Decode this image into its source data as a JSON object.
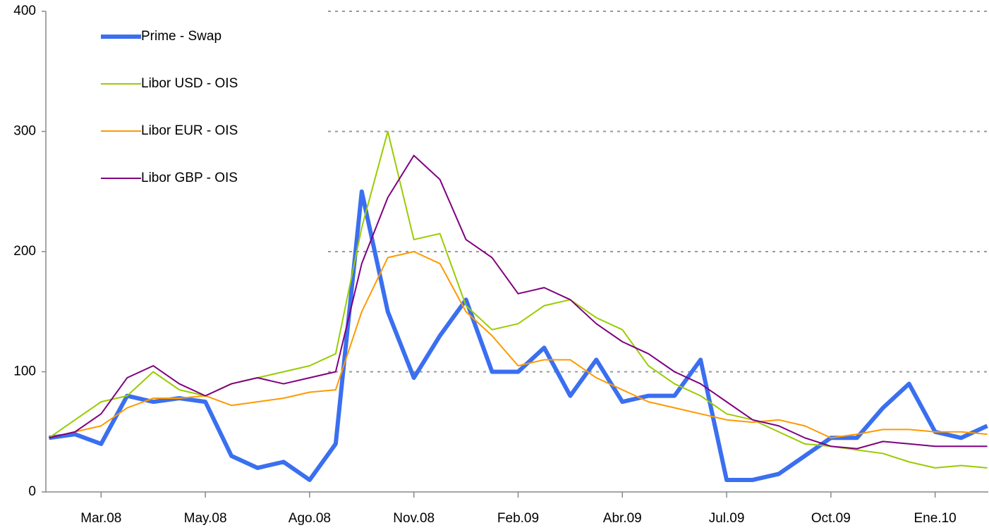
{
  "chart_data": {
    "type": "line",
    "x": [
      0.5,
      0.75,
      1,
      1.25,
      1.5,
      1.75,
      2,
      2.25,
      2.5,
      2.75,
      3,
      3.25,
      3.5,
      3.75,
      4,
      4.25,
      4.5,
      4.75,
      5,
      5.25,
      5.5,
      5.75,
      6,
      6.25,
      6.5,
      6.75,
      7,
      7.25,
      7.5,
      7.75,
      8,
      8.25,
      8.5,
      8.75,
      9,
      9.25,
      9.5
    ],
    "series": [
      {
        "name": "Prime - Swap",
        "color": "#3a6ff0",
        "width": 6,
        "values": [
          45,
          48,
          40,
          80,
          75,
          78,
          75,
          30,
          20,
          25,
          10,
          40,
          250,
          150,
          95,
          130,
          160,
          100,
          100,
          120,
          80,
          110,
          75,
          80,
          80,
          110,
          10,
          10,
          15,
          30,
          45,
          45,
          70,
          90,
          50,
          45,
          55
        ]
      },
      {
        "name": "Libor USD - OIS",
        "color": "#99cc00",
        "width": 2,
        "values": [
          45,
          60,
          75,
          80,
          100,
          85,
          80,
          90,
          95,
          100,
          105,
          115,
          220,
          300,
          210,
          215,
          155,
          135,
          140,
          155,
          160,
          145,
          135,
          105,
          90,
          80,
          65,
          60,
          50,
          40,
          38,
          35,
          32,
          25,
          20,
          22,
          20
        ]
      },
      {
        "name": "Libor EUR - OIS",
        "color": "#ff9900",
        "width": 2,
        "values": [
          45,
          50,
          55,
          70,
          78,
          78,
          80,
          72,
          75,
          78,
          83,
          85,
          150,
          195,
          200,
          190,
          150,
          130,
          105,
          110,
          110,
          95,
          85,
          75,
          70,
          65,
          60,
          58,
          60,
          55,
          45,
          48,
          52,
          52,
          50,
          50,
          48
        ]
      },
      {
        "name": "Libor GBP - OIS",
        "color": "#800080",
        "width": 2,
        "values": [
          45,
          50,
          65,
          95,
          105,
          90,
          80,
          90,
          95,
          90,
          95,
          100,
          190,
          245,
          280,
          260,
          210,
          195,
          165,
          170,
          160,
          140,
          125,
          115,
          100,
          90,
          75,
          60,
          55,
          45,
          38,
          36,
          42,
          40,
          38,
          38,
          38
        ]
      }
    ],
    "xlim": [
      0.47,
      9.51
    ],
    "xticks": [
      {
        "value": 1,
        "label": "Mar.08"
      },
      {
        "value": 2,
        "label": "May.08"
      },
      {
        "value": 3,
        "label": "Ago.08"
      },
      {
        "value": 4,
        "label": "Nov.08"
      },
      {
        "value": 5,
        "label": "Feb.09"
      },
      {
        "value": 6,
        "label": "Abr.09"
      },
      {
        "value": 7,
        "label": "Jul.09"
      },
      {
        "value": 8,
        "label": "Oct.09"
      },
      {
        "value": 9,
        "label": "Ene.10"
      }
    ],
    "ylim": [
      0,
      400
    ],
    "yticks": [
      0,
      100,
      200,
      300,
      400
    ],
    "grid": true,
    "legend": "upper left"
  }
}
